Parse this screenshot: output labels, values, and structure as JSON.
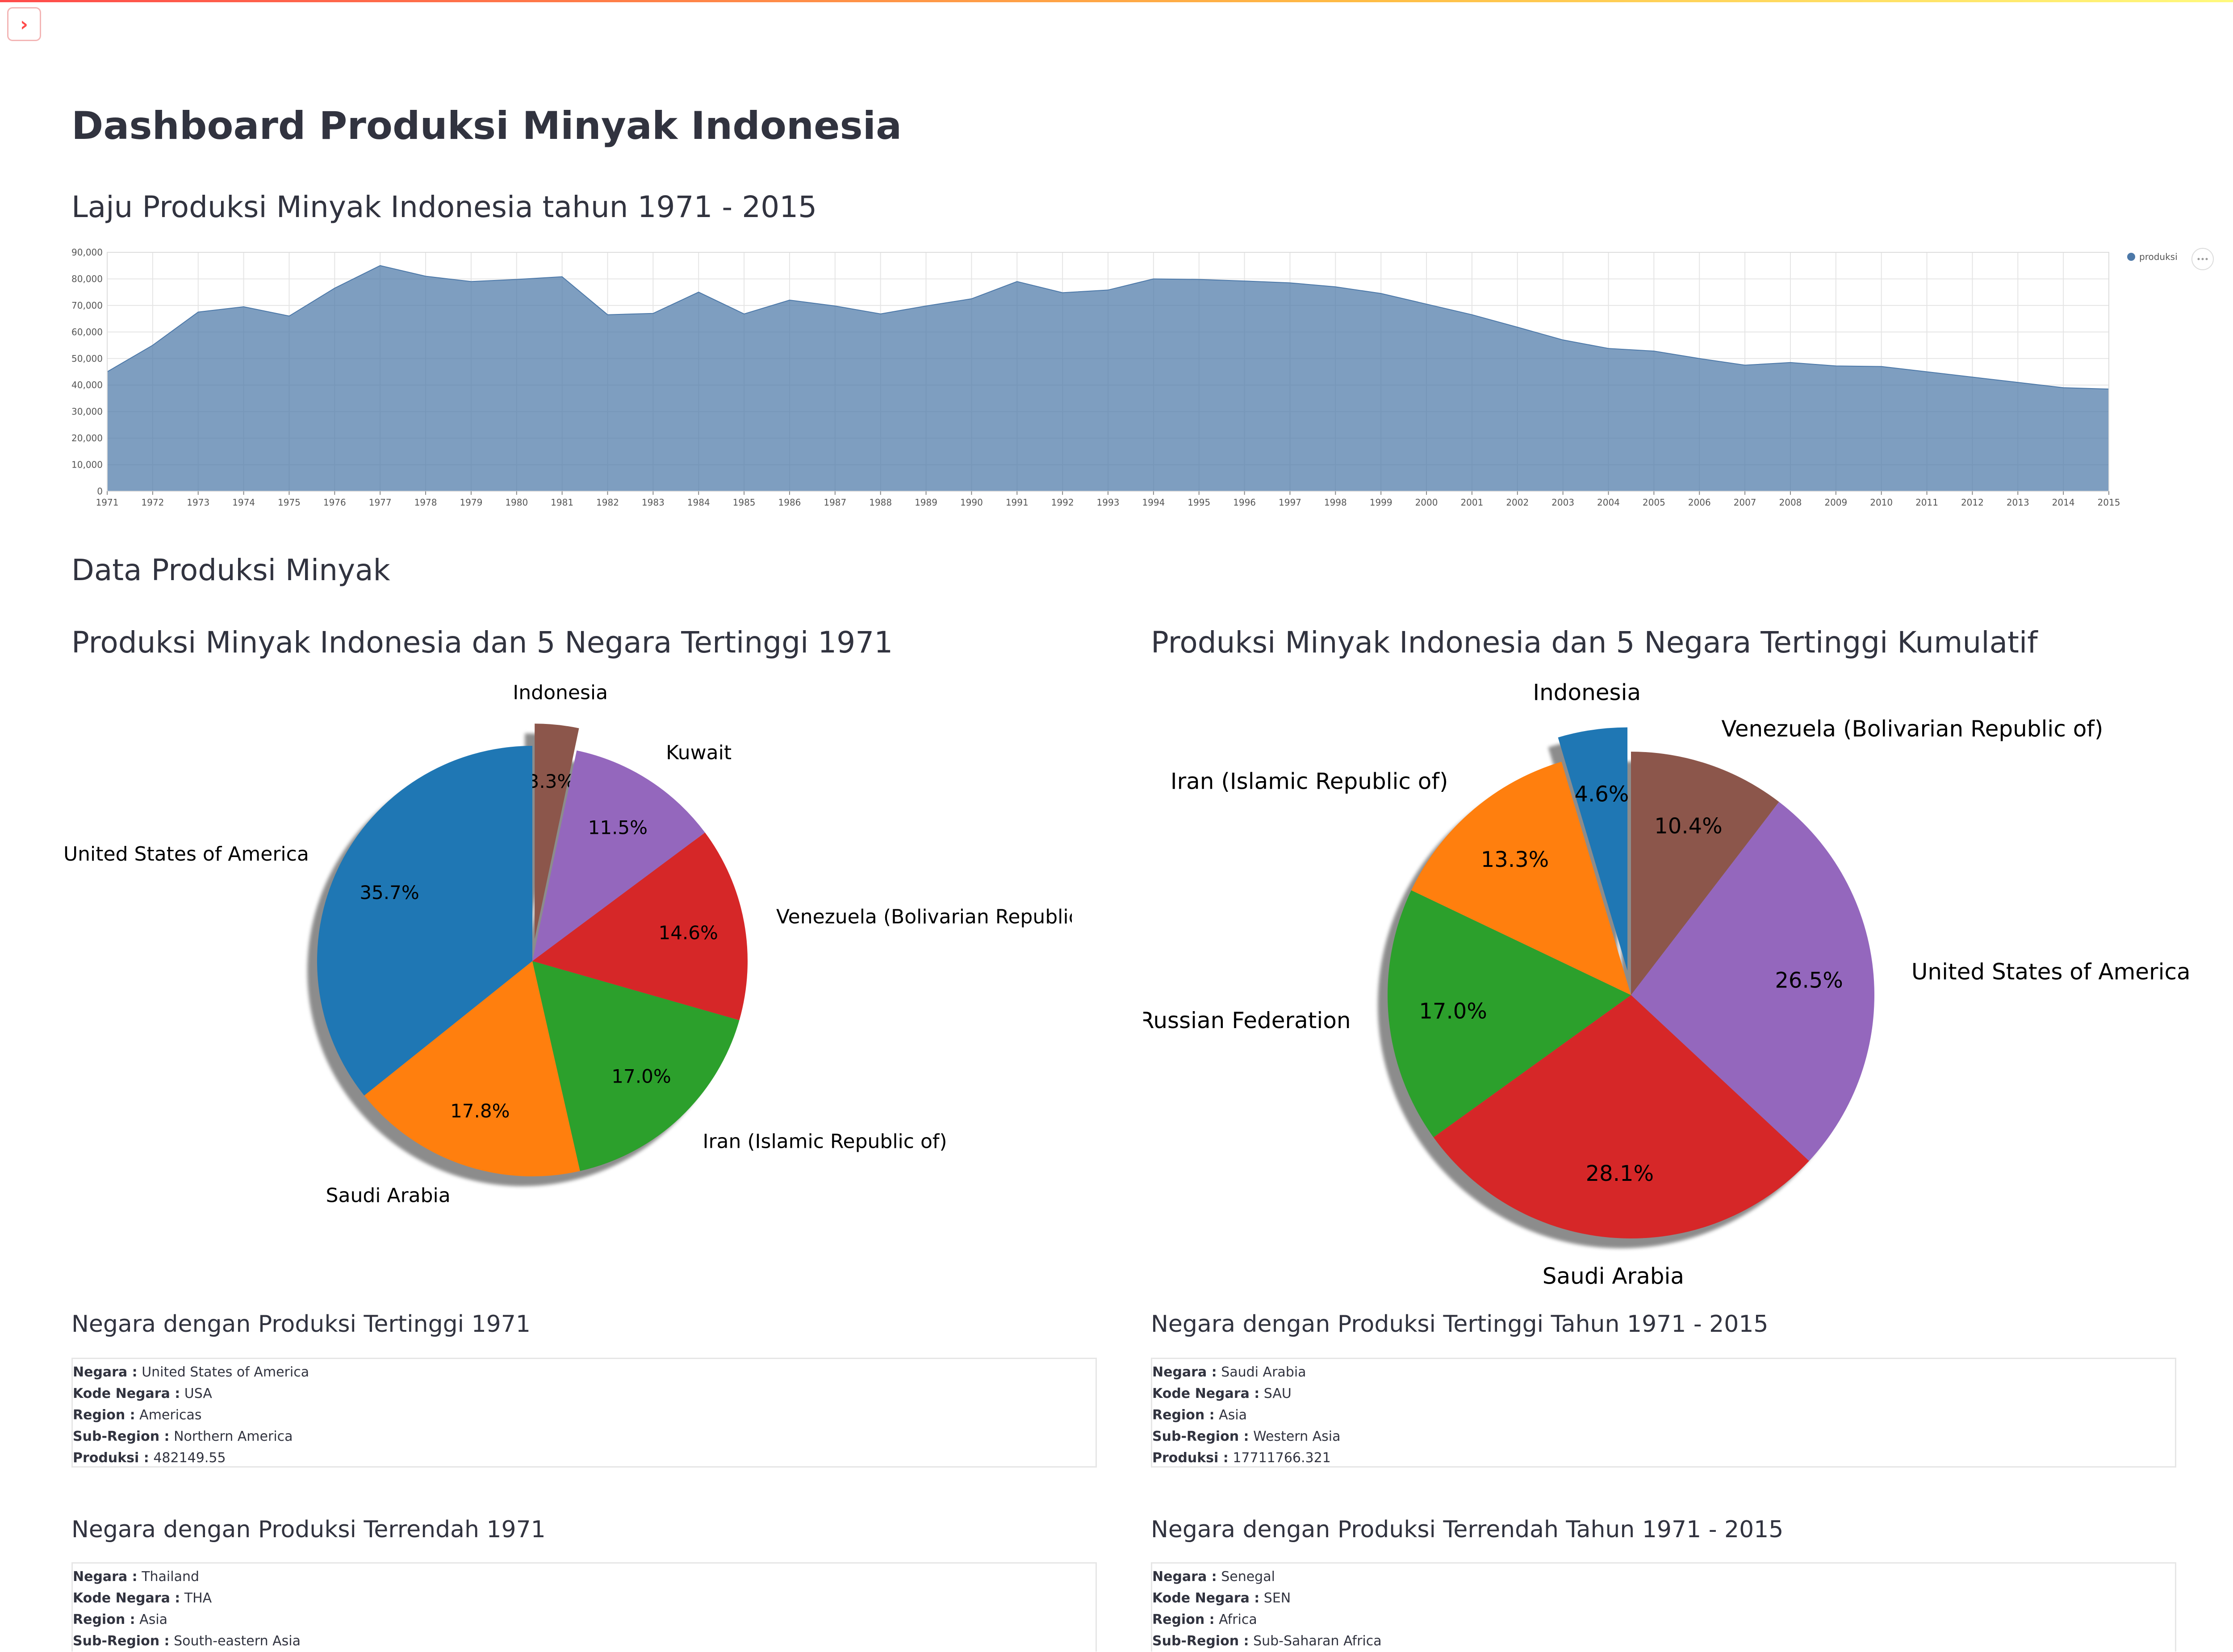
{
  "page": {
    "title": "Dashboard Produksi Minyak Indonesia",
    "colors": {
      "accent": "#ff4b4b",
      "area": "#4c78a8",
      "text": "#31333F"
    }
  },
  "toolbar": {
    "sidebar_icon": "chevron-right-icon",
    "menu_icon": "hamburger-menu-icon",
    "sidebar_glyph": "›",
    "menu_glyph": "≡"
  },
  "sections": {
    "trend_title": "Laju Produksi Minyak Indonesia tahun 1971 - 2015",
    "data_title": "Data Produksi Minyak",
    "pie1_title": "Produksi Minyak Indonesia dan 5 Negara Tertinggi 1971",
    "pie2_title": "Produksi Minyak Indonesia dan 5 Negara Tertinggi Kumulatif"
  },
  "chart_data": [
    {
      "type": "area",
      "legend": "produksi",
      "legend_position": "top-right",
      "grid": true,
      "x": [
        1971,
        1972,
        1973,
        1974,
        1975,
        1976,
        1977,
        1978,
        1979,
        1980,
        1981,
        1982,
        1983,
        1984,
        1985,
        1986,
        1987,
        1988,
        1989,
        1990,
        1991,
        1992,
        1993,
        1994,
        1995,
        1996,
        1997,
        1998,
        1999,
        2000,
        2001,
        2002,
        2003,
        2004,
        2005,
        2006,
        2007,
        2008,
        2009,
        2010,
        2011,
        2012,
        2013,
        2014,
        2015
      ],
      "values": [
        45000,
        55000,
        67500,
        69500,
        66000,
        76500,
        85000,
        81000,
        79000,
        79800,
        80800,
        66500,
        67000,
        75000,
        66800,
        72000,
        69800,
        66800,
        69800,
        72500,
        79000,
        74800,
        75800,
        80000,
        79800,
        79200,
        78500,
        77000,
        74500,
        70500,
        66500,
        61800,
        57000,
        53800,
        52800,
        50000,
        47500,
        48500,
        47200,
        47000,
        45000,
        43000,
        41000,
        39000,
        38500
      ],
      "ylim": [
        0,
        90000
      ],
      "yticks": [
        0,
        10000,
        20000,
        30000,
        40000,
        50000,
        60000,
        70000,
        80000,
        90000
      ],
      "ytick_labels": [
        "0",
        "10,000",
        "20,000",
        "30,000",
        "40,000",
        "50,000",
        "60,000",
        "70,000",
        "80,000",
        "90,000"
      ],
      "colors": {
        "area": "#4c78a8",
        "legend": "#4c78a8"
      }
    },
    {
      "type": "pie",
      "title": "Produksi Minyak Indonesia dan 5 Negara Tertinggi 1971",
      "slices": [
        {
          "label": "Indonesia",
          "pct": "3.3%",
          "value": 3.3,
          "color": "#8c564b",
          "explode": true
        },
        {
          "label": "Kuwait",
          "pct": "11.5%",
          "value": 11.5,
          "color": "#9467bd"
        },
        {
          "label": "Venezuela (Bolivarian Republic of)",
          "pct": "14.6%",
          "value": 14.6,
          "color": "#d62728"
        },
        {
          "label": "Iran (Islamic Republic of)",
          "pct": "17.0%",
          "value": 17.0,
          "color": "#2ca02c"
        },
        {
          "label": "Saudi Arabia",
          "pct": "17.8%",
          "value": 17.8,
          "color": "#ff7f0e"
        },
        {
          "label": "United States of America",
          "pct": "35.7%",
          "value": 35.7,
          "color": "#1f77b4"
        }
      ],
      "shadow": true
    },
    {
      "type": "pie",
      "title": "Produksi Minyak Indonesia dan 5 Negara Tertinggi Kumulatif",
      "slices": [
        {
          "label": "Venezuela (Bolivarian Republic of)",
          "pct": "10.4%",
          "value": 10.4,
          "color": "#8c564b"
        },
        {
          "label": "United States of America",
          "pct": "26.5%",
          "value": 26.5,
          "color": "#9467bd"
        },
        {
          "label": "Saudi Arabia",
          "pct": "28.1%",
          "value": 28.1,
          "color": "#d62728"
        },
        {
          "label": "Russian Federation",
          "pct": "17.0%",
          "value": 17.0,
          "color": "#2ca02c"
        },
        {
          "label": "Iran (Islamic Republic of)",
          "pct": "13.3%",
          "value": 13.3,
          "color": "#ff7f0e"
        },
        {
          "label": "Indonesia",
          "pct": "4.6%",
          "value": 4.6,
          "color": "#1f77b4",
          "explode": true
        }
      ],
      "shadow": true
    }
  ],
  "info": {
    "highest_1971": {
      "title": "Negara dengan Produksi Tertinggi 1971",
      "rows": [
        {
          "key": "Negara :",
          "value": "United States of America"
        },
        {
          "key": "Kode Negara :",
          "value": "USA"
        },
        {
          "key": "Region :",
          "value": "Americas"
        },
        {
          "key": "Sub-Region :",
          "value": "Northern America"
        },
        {
          "key": "Produksi :",
          "value": "482149.55"
        }
      ]
    },
    "highest_all": {
      "title": "Negara dengan Produksi Tertinggi Tahun 1971 - 2015",
      "rows": [
        {
          "key": "Negara :",
          "value": "Saudi Arabia"
        },
        {
          "key": "Kode Negara :",
          "value": "SAU"
        },
        {
          "key": "Region :",
          "value": "Asia"
        },
        {
          "key": "Sub-Region :",
          "value": "Western Asia"
        },
        {
          "key": "Produksi :",
          "value": "17711766.321"
        }
      ]
    },
    "lowest_1971": {
      "title": "Negara dengan Produksi Terrendah 1971",
      "rows": [
        {
          "key": "Negara :",
          "value": "Thailand"
        },
        {
          "key": "Kode Negara :",
          "value": "THA"
        },
        {
          "key": "Region :",
          "value": "Asia"
        },
        {
          "key": "Sub-Region :",
          "value": "South-eastern Asia"
        }
      ]
    },
    "lowest_all": {
      "title": "Negara dengan Produksi Terrendah Tahun 1971 - 2015",
      "rows": [
        {
          "key": "Negara :",
          "value": "Senegal"
        },
        {
          "key": "Kode Negara :",
          "value": "SEN"
        },
        {
          "key": "Region :",
          "value": "Africa"
        },
        {
          "key": "Sub-Region :",
          "value": "Sub-Saharan Africa"
        }
      ]
    }
  }
}
